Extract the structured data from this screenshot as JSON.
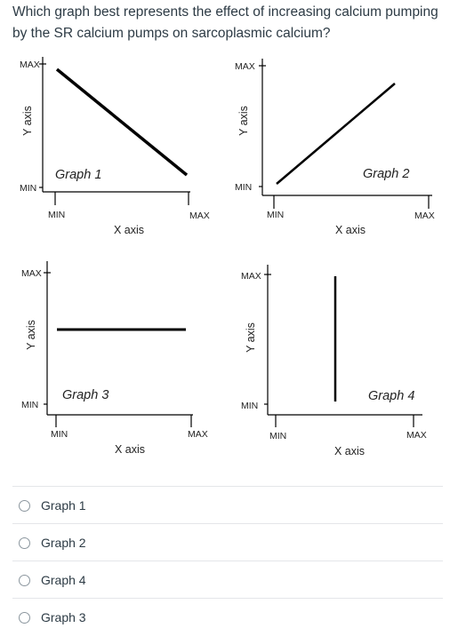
{
  "question": {
    "text": "Which graph best represents the effect of increasing calcium pumping by the SR calcium pumps on sarcoplasmic calcium?"
  },
  "graphs": [
    {
      "title": "Graph 1",
      "y_max": "MAX",
      "y_min": "MIN",
      "y_label": "Y axis",
      "x_min": "MIN",
      "x_max": "MAX",
      "x_label": "X axis"
    },
    {
      "title": "Graph 2",
      "y_max": "MAX",
      "y_min": "MIN",
      "y_label": "Y axis",
      "x_min": "MIN",
      "x_max": "MAX",
      "x_label": "X axis"
    },
    {
      "title": "Graph 3",
      "y_max": "MAX",
      "y_min": "MIN",
      "y_label": "Y axis",
      "x_min": "MIN",
      "x_max": "MAX",
      "x_label": "X axis"
    },
    {
      "title": "Graph 4",
      "y_max": "MAX",
      "y_min": "MIN",
      "y_label": "Y axis",
      "x_min": "MIN",
      "x_max": "MAX",
      "x_label": "X axis"
    }
  ],
  "options": [
    {
      "label": "Graph 1"
    },
    {
      "label": "Graph 2"
    },
    {
      "label": "Graph 4"
    },
    {
      "label": "Graph 3"
    }
  ]
}
